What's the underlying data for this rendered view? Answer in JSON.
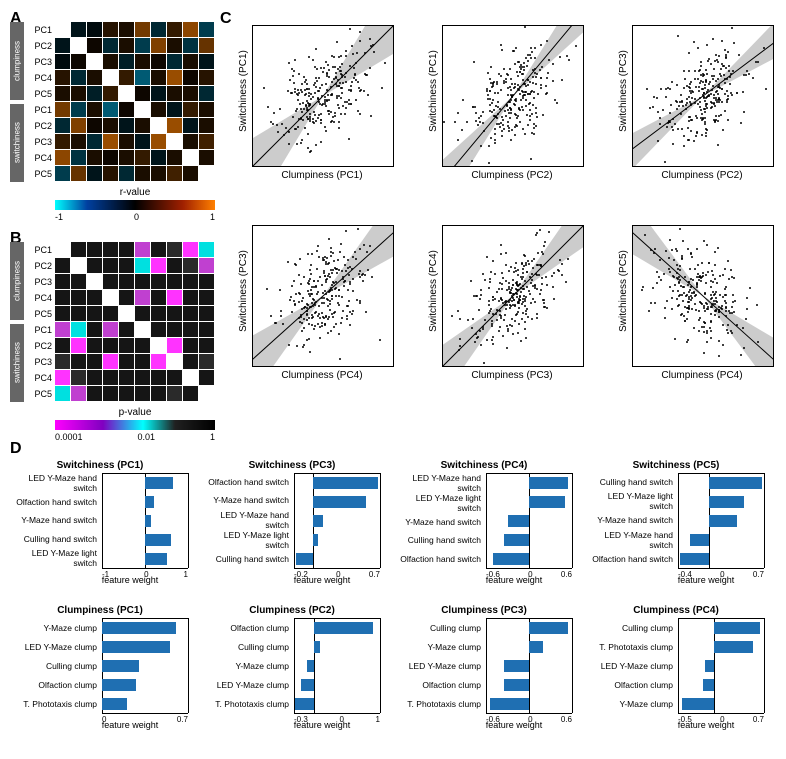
{
  "panels": {
    "A": "A",
    "B": "B",
    "C": "C",
    "D": "D"
  },
  "rowLabels": [
    "PC1",
    "PC2",
    "PC3",
    "PC4",
    "PC5",
    "PC1",
    "PC2",
    "PC3",
    "PC4",
    "PC5"
  ],
  "groupLabels": [
    "clumpiness",
    "switchiness"
  ],
  "panelA": {
    "title": "r-value",
    "colorbar_gradient": "linear-gradient(to right,#00ffff 0%,#0040a0 20%,#000000 50%,#a02000 80%,#ff8000 100%)",
    "ticks": [
      "-1",
      "0",
      "1"
    ],
    "cells": [
      [
        1.0,
        -0.1,
        -0.05,
        0.15,
        0.1,
        0.45,
        -0.2,
        0.2,
        0.55,
        -0.3
      ],
      [
        -0.1,
        1.0,
        0.05,
        -0.2,
        0.1,
        -0.3,
        0.5,
        0.1,
        -0.25,
        0.4
      ],
      [
        -0.05,
        0.05,
        1.0,
        0.1,
        -0.15,
        0.1,
        0.05,
        -0.2,
        0.1,
        -0.1
      ],
      [
        0.15,
        -0.2,
        0.1,
        1.0,
        0.2,
        -0.45,
        0.1,
        0.6,
        0.05,
        0.15
      ],
      [
        0.1,
        0.1,
        -0.15,
        0.2,
        1.0,
        0.05,
        -0.1,
        0.1,
        0.1,
        -0.2
      ],
      [
        0.45,
        -0.3,
        0.1,
        -0.45,
        0.05,
        1.0,
        0.1,
        -0.1,
        0.2,
        0.1
      ],
      [
        -0.2,
        0.5,
        0.05,
        0.1,
        -0.1,
        0.1,
        1.0,
        0.6,
        -0.1,
        0.1
      ],
      [
        0.2,
        0.1,
        -0.2,
        0.6,
        0.1,
        -0.1,
        0.6,
        1.0,
        0.1,
        0.25
      ],
      [
        0.55,
        -0.25,
        0.1,
        0.05,
        0.1,
        0.2,
        -0.1,
        0.1,
        1.0,
        0.1
      ],
      [
        -0.3,
        0.4,
        -0.1,
        0.15,
        -0.2,
        0.1,
        0.1,
        0.25,
        0.1,
        1.0
      ]
    ]
  },
  "panelB": {
    "title": "p-value",
    "colorbar_gradient": "linear-gradient(to right,#ff00ff 0%,#8000c0 30%,#00ffff 55%,#202020 75%,#000000 100%)",
    "ticks": [
      "0.0001",
      "0.01",
      "1"
    ],
    "cells_p": [
      [
        0.0001,
        0.6,
        0.8,
        0.4,
        0.6,
        0.003,
        0.3,
        0.2,
        0.001,
        0.05
      ],
      [
        0.6,
        0.0001,
        0.8,
        0.25,
        0.6,
        0.05,
        0.001,
        0.6,
        0.1,
        0.005
      ],
      [
        0.8,
        0.8,
        0.0001,
        0.6,
        0.4,
        0.6,
        0.8,
        0.3,
        0.6,
        0.6
      ],
      [
        0.4,
        0.25,
        0.6,
        0.0001,
        0.3,
        0.003,
        0.6,
        0.0003,
        0.8,
        0.4
      ],
      [
        0.6,
        0.6,
        0.4,
        0.3,
        0.0001,
        0.8,
        0.6,
        0.6,
        0.6,
        0.3
      ],
      [
        0.003,
        0.05,
        0.6,
        0.003,
        0.8,
        0.0001,
        0.6,
        0.6,
        0.3,
        0.6
      ],
      [
        0.3,
        0.001,
        0.8,
        0.6,
        0.6,
        0.6,
        0.0001,
        0.0003,
        0.6,
        0.6
      ],
      [
        0.2,
        0.6,
        0.3,
        0.0003,
        0.6,
        0.6,
        0.0003,
        0.0001,
        0.6,
        0.1
      ],
      [
        0.001,
        0.1,
        0.6,
        0.8,
        0.6,
        0.3,
        0.6,
        0.6,
        0.0001,
        0.6
      ],
      [
        0.05,
        0.005,
        0.6,
        0.4,
        0.3,
        0.6,
        0.6,
        0.1,
        0.6,
        0.0001
      ]
    ]
  },
  "scatters": [
    {
      "x": "Clumpiness (PC1)",
      "y": "Switchiness (PC1)",
      "slope": 1.0,
      "cone": 50,
      "seed": 11
    },
    {
      "x": "Clumpiness (PC2)",
      "y": "Switchiness (PC1)",
      "slope": 1.2,
      "cone": 28,
      "seed": 22
    },
    {
      "x": "Clumpiness (PC2)",
      "y": "Switchiness (PC3)",
      "slope": 0.75,
      "cone": 32,
      "seed": 33
    },
    {
      "x": "Clumpiness (PC4)",
      "y": "Switchiness (PC3)",
      "slope": 0.9,
      "cone": 45,
      "seed": 44
    },
    {
      "x": "Clumpiness (PC3)",
      "y": "Switchiness (PC4)",
      "slope": 1.0,
      "cone": 36,
      "seed": 55
    },
    {
      "x": "Clumpiness (PC4)",
      "y": "Switchiness (PC5)",
      "slope": -0.9,
      "cone": 40,
      "seed": 66
    }
  ],
  "barXLabel": "feature weight",
  "barpanels": [
    {
      "title": "Switchiness (PC1)",
      "xmin": -1,
      "xmax": 1,
      "ticks": [
        "-1",
        "0",
        "1"
      ],
      "items": [
        {
          "label": "LED Y-Maze hand switch",
          "v": 0.65
        },
        {
          "label": "Olfaction hand switch",
          "v": 0.2
        },
        {
          "label": "Y-Maze hand switch",
          "v": 0.15
        },
        {
          "label": "Culling hand switch",
          "v": 0.6
        },
        {
          "label": "LED Y-Maze light switch",
          "v": 0.5
        }
      ]
    },
    {
      "title": "Switchiness (PC3)",
      "xmin": -0.2,
      "xmax": 0.7,
      "ticks": [
        "-0.2",
        "0",
        "0.7"
      ],
      "items": [
        {
          "label": "Olfaction hand switch",
          "v": 0.68
        },
        {
          "label": "Y-Maze hand switch",
          "v": 0.55
        },
        {
          "label": "LED Y-Maze hand switch",
          "v": 0.1
        },
        {
          "label": "LED Y-Maze light switch",
          "v": 0.05
        },
        {
          "label": "Culling hand switch",
          "v": -0.18
        }
      ]
    },
    {
      "title": "Switchiness (PC4)",
      "xmin": -0.6,
      "xmax": 0.6,
      "ticks": [
        "-0.6",
        "0",
        "0.6"
      ],
      "items": [
        {
          "label": "LED Y-Maze hand switch",
          "v": 0.55
        },
        {
          "label": "LED Y-Maze light switch",
          "v": 0.5
        },
        {
          "label": "Y-Maze hand switch",
          "v": -0.3
        },
        {
          "label": "Culling hand switch",
          "v": -0.35
        },
        {
          "label": "Olfaction hand switch",
          "v": -0.5
        }
      ]
    },
    {
      "title": "Switchiness (PC5)",
      "xmin": -0.4,
      "xmax": 0.7,
      "ticks": [
        "-0.4",
        "0",
        "0.7"
      ],
      "items": [
        {
          "label": "Culling hand switch",
          "v": 0.68
        },
        {
          "label": "LED Y-Maze light switch",
          "v": 0.45
        },
        {
          "label": "Y-Maze hand switch",
          "v": 0.35
        },
        {
          "label": "LED Y-Maze hand switch",
          "v": -0.25
        },
        {
          "label": "Olfaction hand switch",
          "v": -0.38
        }
      ]
    },
    {
      "title": "Clumpiness (PC1)",
      "xmin": 0,
      "xmax": 0.7,
      "ticks": [
        "0",
        "0.7"
      ],
      "items": [
        {
          "label": "Y-Maze clump",
          "v": 0.6
        },
        {
          "label": "LED Y-Maze clump",
          "v": 0.55
        },
        {
          "label": "Culling clump",
          "v": 0.3
        },
        {
          "label": "Olfaction clump",
          "v": 0.28
        },
        {
          "label": "T. Phototaxis clump",
          "v": 0.2
        }
      ]
    },
    {
      "title": "Clumpiness (PC2)",
      "xmin": -0.3,
      "xmax": 1,
      "ticks": [
        "-0.3",
        "0",
        "1"
      ],
      "items": [
        {
          "label": "Olfaction clump",
          "v": 0.9
        },
        {
          "label": "Culling clump",
          "v": 0.1
        },
        {
          "label": "Y-Maze clump",
          "v": -0.1
        },
        {
          "label": "LED Y-Maze clump",
          "v": -0.2
        },
        {
          "label": "T. Phototaxis clump",
          "v": -0.28
        }
      ]
    },
    {
      "title": "Clumpiness (PC3)",
      "xmin": -0.6,
      "xmax": 0.6,
      "ticks": [
        "-0.6",
        "0",
        "0.6"
      ],
      "items": [
        {
          "label": "Culling clump",
          "v": 0.55
        },
        {
          "label": "Y-Maze clump",
          "v": 0.2
        },
        {
          "label": "LED Y-Maze clump",
          "v": -0.35
        },
        {
          "label": "Olfaction clump",
          "v": -0.35
        },
        {
          "label": "T. Phototaxis clump",
          "v": -0.55
        }
      ]
    },
    {
      "title": "Clumpiness (PC4)",
      "xmin": -0.5,
      "xmax": 0.7,
      "ticks": [
        "-0.5",
        "0",
        "0.7"
      ],
      "items": [
        {
          "label": "Culling clump",
          "v": 0.65
        },
        {
          "label": "T. Phototaxis clump",
          "v": 0.55
        },
        {
          "label": "LED Y-Maze clump",
          "v": -0.12
        },
        {
          "label": "Olfaction clump",
          "v": -0.15
        },
        {
          "label": "Y-Maze clump",
          "v": -0.45
        }
      ]
    }
  ]
}
